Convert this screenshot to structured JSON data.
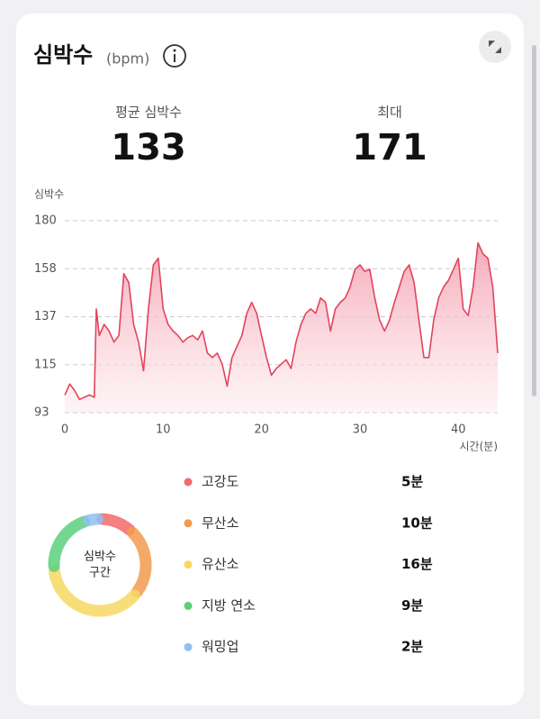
{
  "header": {
    "title": "심박수",
    "unit": "(bpm)"
  },
  "stats": [
    {
      "label": "평균 심박수",
      "value": 133
    },
    {
      "label": "최대",
      "value": 171
    }
  ],
  "chart_data": {
    "type": "area",
    "ylabel": "심박수",
    "xlabel": "시간(분)",
    "color": "#e2445c",
    "x": [
      0,
      0.5,
      1,
      1.5,
      2,
      2.5,
      3,
      3.2,
      3.5,
      4,
      4.5,
      5,
      5.5,
      6,
      6.5,
      7,
      7.5,
      8,
      8.5,
      9,
      9.5,
      10,
      10.5,
      11,
      11.5,
      12,
      12.5,
      13,
      13.5,
      14,
      14.5,
      15,
      15.5,
      16,
      16.5,
      17,
      17.5,
      18,
      18.5,
      19,
      19.5,
      20,
      20.5,
      21,
      21.5,
      22,
      22.5,
      23,
      23.5,
      24,
      24.5,
      25,
      25.5,
      26,
      26.5,
      27,
      27.5,
      28,
      28.5,
      29,
      29.5,
      30,
      30.5,
      31,
      31.5,
      32,
      32.5,
      33,
      33.5,
      34,
      34.5,
      35,
      35.5,
      36,
      36.5,
      37,
      37.5,
      38,
      38.5,
      39,
      39.5,
      40,
      40.5,
      41,
      41.5,
      42,
      42.5,
      43,
      43.5,
      44
    ],
    "values": [
      101,
      106,
      103,
      99,
      100,
      101,
      100,
      140,
      128,
      133,
      130,
      125,
      128,
      156,
      152,
      133,
      125,
      112,
      140,
      160,
      163,
      140,
      133,
      130,
      128,
      125,
      127,
      128,
      126,
      130,
      120,
      118,
      120,
      115,
      105,
      118,
      123,
      128,
      138,
      143,
      138,
      128,
      118,
      110,
      113,
      115,
      117,
      113,
      125,
      133,
      138,
      140,
      138,
      145,
      143,
      130,
      140,
      143,
      145,
      150,
      158,
      160,
      157,
      158,
      145,
      135,
      130,
      135,
      143,
      150,
      157,
      160,
      152,
      135,
      118,
      118,
      135,
      145,
      150,
      153,
      158,
      163,
      140,
      137,
      150,
      170,
      165,
      163,
      150,
      120
    ],
    "xlim": [
      0,
      44
    ],
    "xticks": [
      0,
      10,
      20,
      30,
      40
    ],
    "ylim": [
      93,
      180
    ],
    "yticks": [
      93,
      {
        "value": 114.75,
        "label": "115"
      },
      {
        "value": 136.5,
        "label": "137"
      },
      {
        "value": 158.25,
        "label": "158"
      },
      180
    ],
    "grid": true
  },
  "zones": {
    "center_label": [
      "심박수",
      "구간"
    ],
    "items": [
      {
        "name": "고강도",
        "color": "#f26a6a",
        "value": 5,
        "value_label": "5분"
      },
      {
        "name": "무산소",
        "color": "#f39a4e",
        "value": 10,
        "value_label": "10분"
      },
      {
        "name": "유산소",
        "color": "#f7d862",
        "value": 16,
        "value_label": "16분"
      },
      {
        "name": "지방 연소",
        "color": "#5ccf7c",
        "value": 9,
        "value_label": "9분"
      },
      {
        "name": "워밍업",
        "color": "#8fc1f2",
        "value": 2,
        "value_label": "2분"
      }
    ]
  }
}
